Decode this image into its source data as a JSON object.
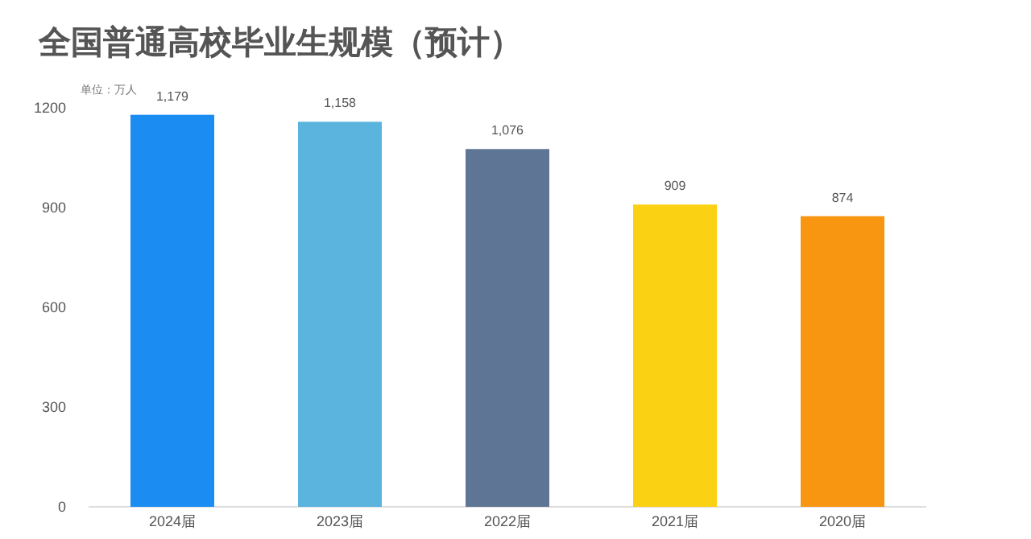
{
  "chart_data": {
    "type": "bar",
    "title": "全国普通高校毕业生规模（预计）",
    "ylabel": "单位：万人",
    "categories": [
      "2024届",
      "2023届",
      "2022届",
      "2021届",
      "2020届"
    ],
    "values": [
      1179,
      1158,
      1076,
      909,
      874
    ],
    "colors": [
      "#1b8cf2",
      "#5ab4dd",
      "#5f7596",
      "#fbd114",
      "#f89611"
    ],
    "value_labels": [
      "1,179",
      "1,158",
      "1,076",
      "909",
      "874"
    ],
    "ylim": [
      0,
      1200
    ],
    "yticks": [
      0,
      300,
      600,
      900,
      1200
    ],
    "grid": false
  }
}
